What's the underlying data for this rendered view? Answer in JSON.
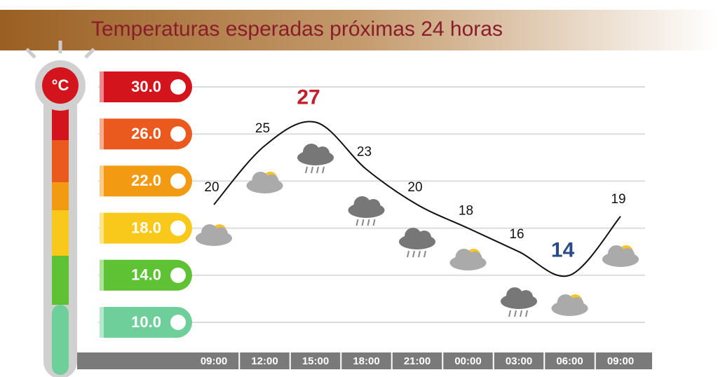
{
  "chart_data": {
    "type": "line",
    "title": "Temperaturas esperadas próximas 24 horas",
    "unit": "°C",
    "categories": [
      "09:00",
      "12:00",
      "15:00",
      "18:00",
      "21:00",
      "00:00",
      "03:00",
      "06:00",
      "09:00"
    ],
    "values": [
      20,
      25,
      27,
      23,
      20,
      18,
      16,
      14,
      19
    ],
    "color": "#111111",
    "ylim": [
      10,
      30
    ],
    "yticks": [
      {
        "value": 10,
        "label": "10.0"
      },
      {
        "value": 14,
        "label": "14.0"
      },
      {
        "value": 18,
        "label": "18.0"
      },
      {
        "value": 22,
        "label": "22.0"
      },
      {
        "value": 26,
        "label": "26.0"
      },
      {
        "value": 30,
        "label": "30.0"
      }
    ],
    "grid": true
  }
}
